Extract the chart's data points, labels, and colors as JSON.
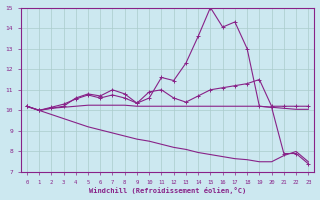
{
  "xlabel": "Windchill (Refroidissement éolien,°C)",
  "background_color": "#cce8f0",
  "grid_color": "#aacccc",
  "line_color": "#882288",
  "x_values": [
    0,
    1,
    2,
    3,
    4,
    5,
    6,
    7,
    8,
    9,
    10,
    11,
    12,
    13,
    14,
    15,
    16,
    17,
    18,
    19,
    20,
    21,
    22,
    23
  ],
  "line1": [
    10.2,
    10.0,
    10.1,
    10.2,
    10.6,
    10.8,
    10.7,
    11.0,
    10.8,
    10.35,
    10.6,
    11.6,
    11.45,
    12.3,
    13.6,
    15.0,
    14.05,
    14.3,
    13.0,
    10.2,
    10.15,
    7.9,
    7.9,
    7.4
  ],
  "line2": [
    10.2,
    10.0,
    10.15,
    10.3,
    10.55,
    10.75,
    10.6,
    10.75,
    10.6,
    10.35,
    10.9,
    11.0,
    10.6,
    10.4,
    10.7,
    11.0,
    11.1,
    11.2,
    11.3,
    11.5,
    10.2,
    10.2,
    10.2,
    10.2
  ],
  "line3": [
    10.2,
    10.0,
    10.1,
    10.15,
    10.2,
    10.25,
    10.25,
    10.25,
    10.25,
    10.2,
    10.2,
    10.2,
    10.2,
    10.2,
    10.2,
    10.2,
    10.2,
    10.2,
    10.2,
    10.2,
    10.15,
    10.1,
    10.05,
    10.05
  ],
  "line4": [
    10.2,
    10.0,
    9.8,
    9.6,
    9.4,
    9.2,
    9.05,
    8.9,
    8.75,
    8.6,
    8.5,
    8.35,
    8.2,
    8.1,
    7.95,
    7.85,
    7.75,
    7.65,
    7.6,
    7.5,
    7.5,
    7.8,
    8.0,
    7.5
  ],
  "ylim": [
    7,
    15
  ],
  "xlim": [
    -0.5,
    23.5
  ],
  "yticks": [
    7,
    8,
    9,
    10,
    11,
    12,
    13,
    14,
    15
  ],
  "xticks": [
    0,
    1,
    2,
    3,
    4,
    5,
    6,
    7,
    8,
    9,
    10,
    11,
    12,
    13,
    14,
    15,
    16,
    17,
    18,
    19,
    20,
    21,
    22,
    23
  ]
}
